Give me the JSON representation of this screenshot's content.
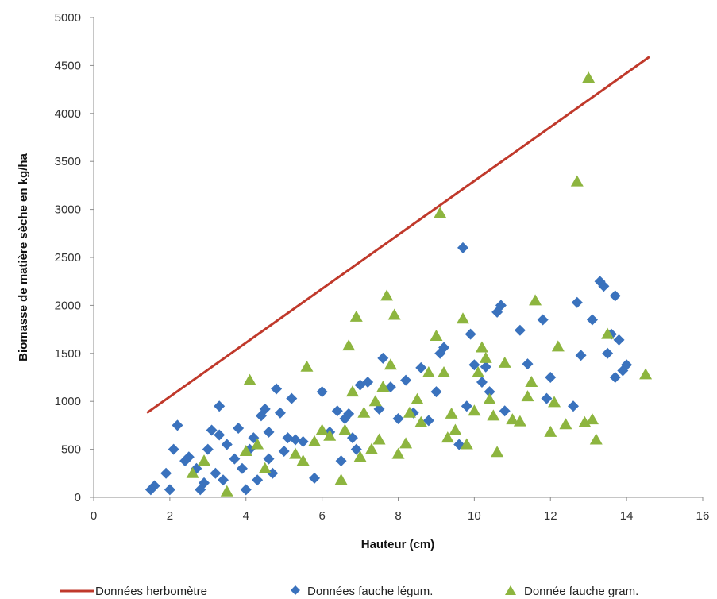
{
  "chart_data": {
    "type": "scatter",
    "title": "",
    "xlabel": "Hauteur (cm)",
    "ylabel": "Biomasse de matière sèche en kg/ha",
    "xlim": [
      0,
      16
    ],
    "ylim": [
      0,
      5000
    ],
    "xticks": [
      0,
      2,
      4,
      6,
      8,
      10,
      12,
      14,
      16
    ],
    "yticks": [
      0,
      500,
      1000,
      1500,
      2000,
      2500,
      3000,
      3500,
      4000,
      4500,
      5000
    ],
    "grid": false,
    "legend_position": "bottom",
    "series": [
      {
        "name": "Données herbomètre",
        "kind": "line",
        "color": "#C0392B",
        "points": [
          [
            1.4,
            880
          ],
          [
            14.6,
            4590
          ]
        ]
      },
      {
        "name": "Données fauche légum.",
        "kind": "scatter",
        "marker": "diamond",
        "color": "#3A72BD",
        "points": [
          [
            1.5,
            80
          ],
          [
            1.6,
            120
          ],
          [
            1.9,
            250
          ],
          [
            2.0,
            80
          ],
          [
            2.1,
            500
          ],
          [
            2.2,
            750
          ],
          [
            2.4,
            380
          ],
          [
            2.5,
            420
          ],
          [
            2.7,
            300
          ],
          [
            2.8,
            80
          ],
          [
            2.9,
            150
          ],
          [
            3.0,
            500
          ],
          [
            3.1,
            700
          ],
          [
            3.2,
            250
          ],
          [
            3.3,
            950
          ],
          [
            3.3,
            650
          ],
          [
            3.4,
            180
          ],
          [
            3.5,
            550
          ],
          [
            3.7,
            400
          ],
          [
            3.8,
            720
          ],
          [
            3.9,
            300
          ],
          [
            4.0,
            80
          ],
          [
            4.1,
            500
          ],
          [
            4.2,
            620
          ],
          [
            4.3,
            180
          ],
          [
            4.4,
            850
          ],
          [
            4.5,
            920
          ],
          [
            4.6,
            400
          ],
          [
            4.6,
            680
          ],
          [
            4.7,
            250
          ],
          [
            4.8,
            1130
          ],
          [
            4.9,
            880
          ],
          [
            5.0,
            480
          ],
          [
            5.1,
            620
          ],
          [
            5.2,
            1030
          ],
          [
            5.3,
            600
          ],
          [
            5.5,
            580
          ],
          [
            5.8,
            200
          ],
          [
            6.0,
            1100
          ],
          [
            6.2,
            680
          ],
          [
            6.4,
            900
          ],
          [
            6.5,
            380
          ],
          [
            6.6,
            820
          ],
          [
            6.7,
            870
          ],
          [
            6.8,
            620
          ],
          [
            6.9,
            500
          ],
          [
            7.0,
            1170
          ],
          [
            7.2,
            1200
          ],
          [
            7.5,
            920
          ],
          [
            7.6,
            1450
          ],
          [
            7.8,
            1150
          ],
          [
            8.0,
            820
          ],
          [
            8.2,
            1220
          ],
          [
            8.4,
            880
          ],
          [
            8.6,
            1350
          ],
          [
            8.8,
            800
          ],
          [
            9.0,
            1100
          ],
          [
            9.1,
            1500
          ],
          [
            9.2,
            1560
          ],
          [
            9.6,
            550
          ],
          [
            9.7,
            2600
          ],
          [
            9.8,
            950
          ],
          [
            9.9,
            1700
          ],
          [
            10.0,
            1380
          ],
          [
            10.2,
            1200
          ],
          [
            10.3,
            1360
          ],
          [
            10.4,
            1100
          ],
          [
            10.6,
            1930
          ],
          [
            10.7,
            2000
          ],
          [
            10.8,
            900
          ],
          [
            11.2,
            1740
          ],
          [
            11.4,
            1390
          ],
          [
            11.8,
            1850
          ],
          [
            11.9,
            1030
          ],
          [
            12.0,
            1250
          ],
          [
            12.6,
            950
          ],
          [
            12.7,
            2030
          ],
          [
            12.8,
            1480
          ],
          [
            13.1,
            1850
          ],
          [
            13.3,
            2250
          ],
          [
            13.4,
            2200
          ],
          [
            13.5,
            1500
          ],
          [
            13.6,
            1700
          ],
          [
            13.7,
            2100
          ],
          [
            13.7,
            1250
          ],
          [
            13.8,
            1640
          ],
          [
            13.9,
            1320
          ],
          [
            14.0,
            1380
          ]
        ]
      },
      {
        "name": "Donnée fauche gram.",
        "kind": "scatter",
        "marker": "triangle",
        "color": "#8DB53F",
        "points": [
          [
            2.6,
            250
          ],
          [
            2.9,
            380
          ],
          [
            3.5,
            60
          ],
          [
            4.0,
            480
          ],
          [
            4.1,
            1220
          ],
          [
            4.3,
            550
          ],
          [
            4.5,
            300
          ],
          [
            5.3,
            450
          ],
          [
            5.5,
            380
          ],
          [
            5.6,
            1360
          ],
          [
            5.8,
            580
          ],
          [
            6.0,
            700
          ],
          [
            6.2,
            640
          ],
          [
            6.5,
            180
          ],
          [
            6.6,
            700
          ],
          [
            6.7,
            1580
          ],
          [
            6.8,
            1100
          ],
          [
            6.9,
            1880
          ],
          [
            7.0,
            420
          ],
          [
            7.1,
            880
          ],
          [
            7.3,
            500
          ],
          [
            7.4,
            1000
          ],
          [
            7.5,
            600
          ],
          [
            7.6,
            1150
          ],
          [
            7.7,
            2100
          ],
          [
            7.8,
            1380
          ],
          [
            7.9,
            1900
          ],
          [
            8.0,
            450
          ],
          [
            8.2,
            560
          ],
          [
            8.3,
            880
          ],
          [
            8.5,
            1020
          ],
          [
            8.6,
            780
          ],
          [
            8.8,
            1300
          ],
          [
            9.0,
            1680
          ],
          [
            9.1,
            2960
          ],
          [
            9.2,
            1300
          ],
          [
            9.3,
            620
          ],
          [
            9.4,
            870
          ],
          [
            9.5,
            700
          ],
          [
            9.7,
            1860
          ],
          [
            9.8,
            550
          ],
          [
            10.0,
            900
          ],
          [
            10.1,
            1300
          ],
          [
            10.2,
            1560
          ],
          [
            10.3,
            1450
          ],
          [
            10.4,
            1020
          ],
          [
            10.5,
            850
          ],
          [
            10.6,
            470
          ],
          [
            10.8,
            1400
          ],
          [
            11.0,
            810
          ],
          [
            11.2,
            790
          ],
          [
            11.4,
            1050
          ],
          [
            11.5,
            1200
          ],
          [
            11.6,
            2050
          ],
          [
            12.0,
            680
          ],
          [
            12.1,
            990
          ],
          [
            12.2,
            1570
          ],
          [
            12.4,
            760
          ],
          [
            12.7,
            3290
          ],
          [
            12.9,
            780
          ],
          [
            13.0,
            4370
          ],
          [
            13.1,
            810
          ],
          [
            13.2,
            600
          ],
          [
            13.5,
            1700
          ],
          [
            14.5,
            1280
          ]
        ]
      }
    ]
  }
}
